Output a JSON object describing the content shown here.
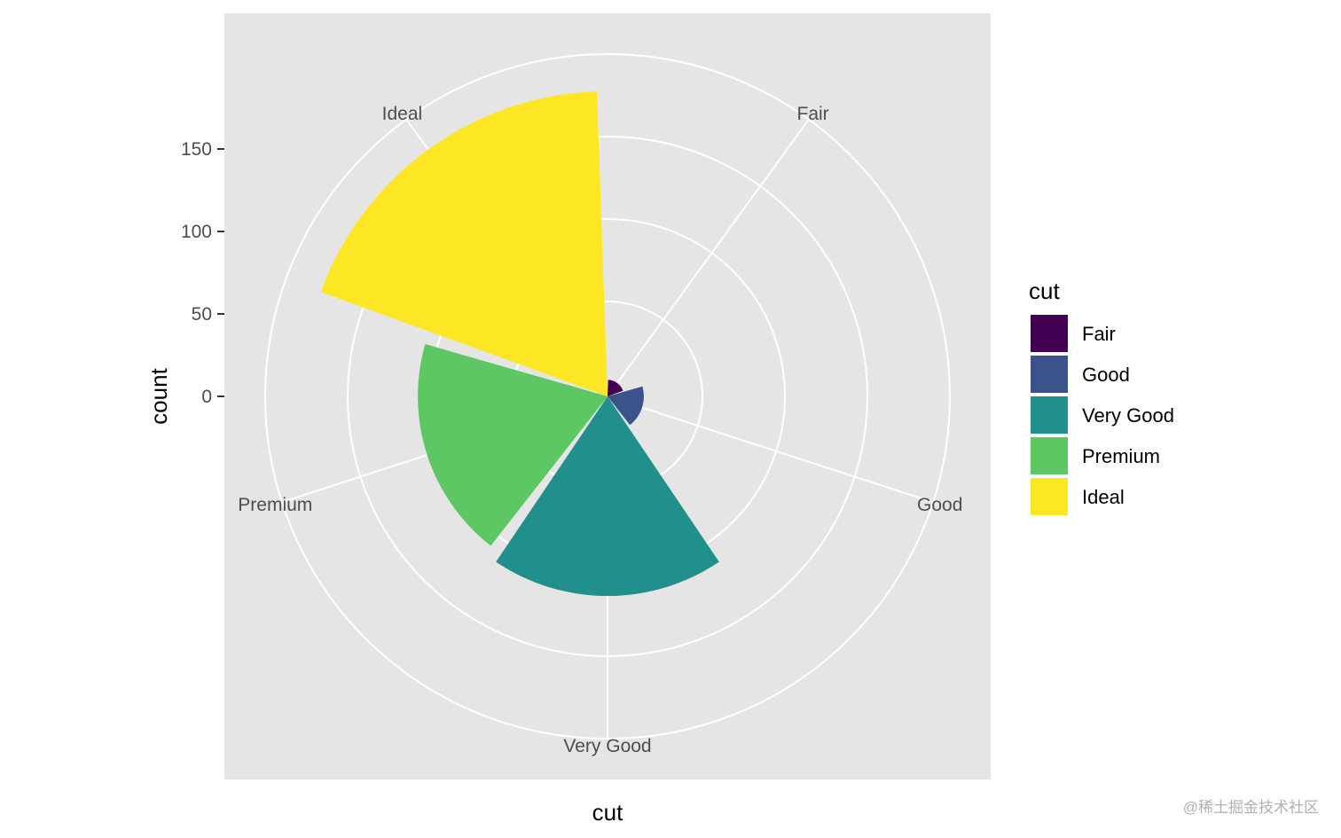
{
  "chart_data": {
    "type": "bar",
    "subtype": "polar-coxcomb",
    "categories": [
      "Fair",
      "Good",
      "Very Good",
      "Premium",
      "Ideal"
    ],
    "values": [
      10,
      22,
      121,
      115,
      185
    ],
    "colors": [
      "#440154",
      "#3b528b",
      "#21908c",
      "#5dc863",
      "#fde725"
    ],
    "xlabel": "cut",
    "ylabel": "count",
    "yticks": [
      0,
      50,
      100,
      150
    ],
    "ylim": [
      0,
      200
    ],
    "background": "#e5e5e5",
    "grid": true,
    "legend": {
      "title": "cut",
      "position": "right",
      "entries": [
        "Fair",
        "Good",
        "Very Good",
        "Premium",
        "Ideal"
      ]
    }
  },
  "watermark": "@稀土掘金技术社区"
}
